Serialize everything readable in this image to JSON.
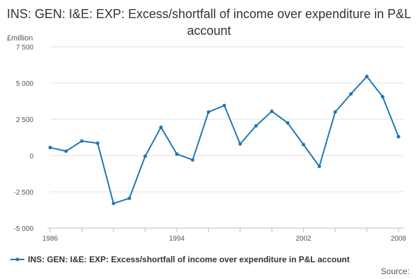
{
  "chart_data": {
    "type": "line",
    "title": "INS: GEN: I&E: EXP: Excess/shortfall of income over expenditure in P&L account",
    "ylabel": "£million",
    "xlabel": "",
    "x": [
      1986,
      1987,
      1988,
      1989,
      1990,
      1991,
      1992,
      1993,
      1994,
      1995,
      1996,
      1997,
      1998,
      1999,
      2000,
      2001,
      2002,
      2003,
      2004,
      2005,
      2006,
      2007,
      2008
    ],
    "series": [
      {
        "name": "INS: GEN: I&E: EXP: Excess/shortfall of income over expenditure in P&L account",
        "color": "#1f77b4",
        "values": [
          550,
          300,
          1000,
          850,
          -3300,
          -2950,
          -50,
          1950,
          100,
          -300,
          3000,
          3450,
          800,
          2050,
          3050,
          2250,
          750,
          -750,
          3000,
          4250,
          5450,
          4050,
          1300
        ]
      }
    ],
    "xlim": [
      1986,
      2008
    ],
    "ylim": [
      -5000,
      7500
    ],
    "y_ticks": [
      {
        "value": 7500,
        "label": "7 500"
      },
      {
        "value": 5000,
        "label": "5 000"
      },
      {
        "value": 2500,
        "label": "2 500"
      },
      {
        "value": 0,
        "label": "0"
      },
      {
        "value": -2500,
        "label": "-2 500"
      },
      {
        "value": -5000,
        "label": "-5 000"
      }
    ],
    "x_tick_labels": [
      {
        "value": 1986,
        "label": "1986"
      },
      {
        "value": 1994,
        "label": "1994"
      },
      {
        "value": 2002,
        "label": "2002"
      },
      {
        "value": 2008,
        "label": "2008"
      }
    ],
    "grid": true,
    "legend_position": "bottom-left"
  },
  "source_label": "Source:"
}
